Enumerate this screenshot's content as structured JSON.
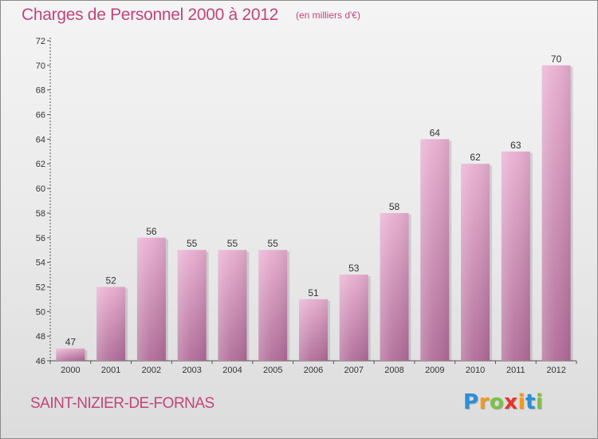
{
  "chart_data": {
    "type": "bar",
    "title": "Charges de Personnel 2000 à 2012",
    "subtitle": "(en milliers d'€)",
    "categories": [
      "2000",
      "2001",
      "2002",
      "2003",
      "2004",
      "2005",
      "2006",
      "2007",
      "2008",
      "2009",
      "2010",
      "2011",
      "2012"
    ],
    "values": [
      47,
      52,
      56,
      55,
      55,
      55,
      51,
      53,
      58,
      64,
      62,
      63,
      70
    ],
    "ylim": [
      46,
      72
    ],
    "yticks": [
      46,
      48,
      50,
      52,
      54,
      56,
      58,
      60,
      62,
      64,
      66,
      68,
      70,
      72
    ],
    "xlabel": "",
    "ylabel": "",
    "grid": false,
    "data_labels": true,
    "colors": {
      "bar_top": "#e8aed0",
      "bar_bottom": "#b06c98",
      "text_accent": "#c0457c"
    }
  },
  "footer": {
    "place_name": "SAINT-NIZIER-DE-FORNAS"
  },
  "logo": {
    "letters": [
      "P",
      "r",
      "o",
      "x",
      "i",
      "t",
      "i"
    ],
    "colors": [
      "#2a8fd6",
      "#f39a1e",
      "#7cc242",
      "#e8342b",
      "#f39a1e",
      "#2a8fd6",
      "#7cc242"
    ]
  }
}
